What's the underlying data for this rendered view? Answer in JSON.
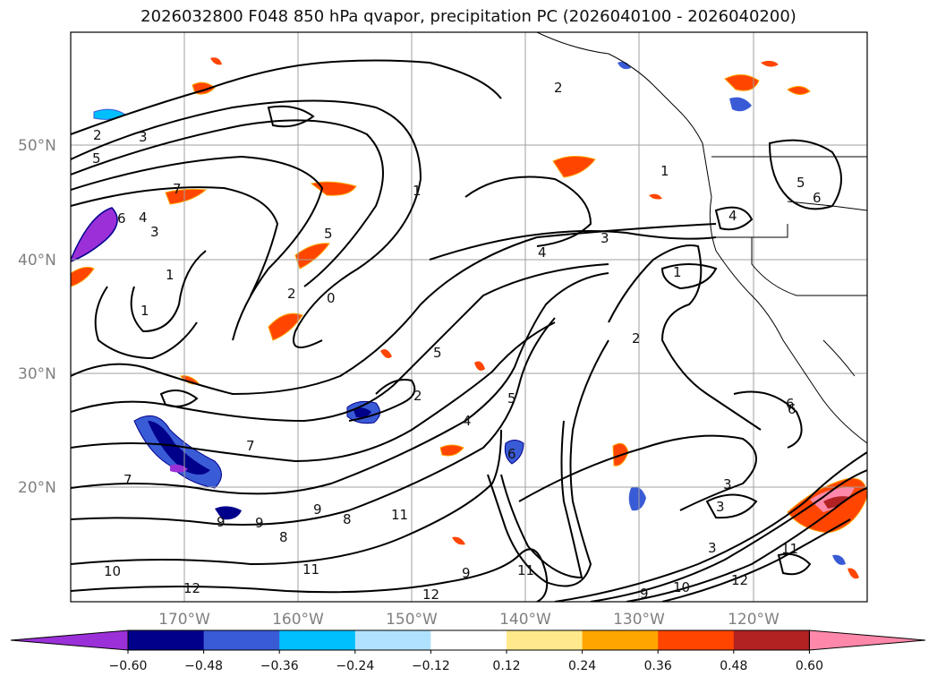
{
  "title": "2026032800 F048 850 hPa qvapor, precipitation PC (2026040100 - 2026040200)",
  "map": {
    "lat_labels": [
      "50°N",
      "40°N",
      "30°N",
      "20°N"
    ],
    "lon_labels": [
      "170°W",
      "160°W",
      "150°W",
      "140°W",
      "130°W",
      "120°W"
    ],
    "gridlines": true
  },
  "colorbar": {
    "ticks": [
      "−0.60",
      "−0.48",
      "−0.36",
      "−0.24",
      "−0.12",
      "0.12",
      "0.24",
      "0.36",
      "0.48",
      "0.60"
    ],
    "colors": [
      "#9b30d9",
      "#00008b",
      "#3a5bd6",
      "#00bfff",
      "#b0e2ff",
      "#ffffff",
      "#ffe98c",
      "#ffa500",
      "#ff4500",
      "#b22222",
      "#ff88aa"
    ],
    "extend": "both"
  },
  "contour_labels": [
    "2",
    "3",
    "5",
    "7",
    "6",
    "4",
    "3",
    "1",
    "1",
    "1",
    "2",
    "0",
    "5",
    "5",
    "4",
    "3",
    "2",
    "1",
    "2",
    "4",
    "5",
    "6",
    "6",
    "7",
    "7",
    "9",
    "9",
    "8",
    "9",
    "8",
    "10",
    "11",
    "11",
    "12",
    "12",
    "9",
    "11",
    "9",
    "10",
    "11",
    "12",
    "3",
    "3",
    "3",
    "6",
    "4",
    "5",
    "6",
    "1",
    "2"
  ]
}
